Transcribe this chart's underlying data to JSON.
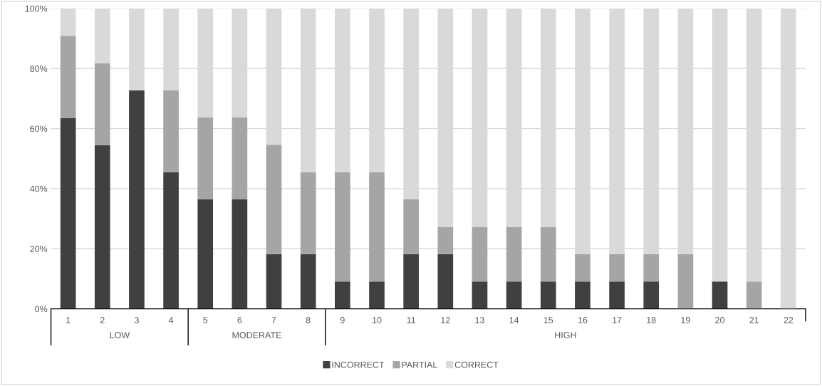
{
  "chart_data": {
    "type": "bar",
    "stacked": true,
    "categories": [
      "1",
      "2",
      "3",
      "4",
      "5",
      "6",
      "7",
      "8",
      "9",
      "10",
      "11",
      "12",
      "13",
      "14",
      "15",
      "16",
      "17",
      "18",
      "19",
      "20",
      "21",
      "22"
    ],
    "series": [
      {
        "name": "INCORRECT",
        "color": "#404040",
        "values": [
          63.6,
          54.5,
          72.7,
          45.5,
          36.4,
          36.4,
          18.2,
          18.2,
          9.1,
          9.1,
          18.2,
          18.2,
          9.1,
          9.1,
          9.1,
          9.1,
          9.1,
          9.1,
          0,
          9.1,
          0,
          0
        ]
      },
      {
        "name": "PARTIAL",
        "color": "#a5a5a5",
        "values": [
          27.3,
          27.3,
          0,
          27.3,
          27.3,
          27.3,
          36.4,
          27.3,
          36.4,
          36.4,
          18.2,
          9.1,
          18.2,
          18.2,
          18.2,
          9.1,
          9.1,
          9.1,
          18.2,
          0,
          9.1,
          0
        ]
      },
      {
        "name": "CORRECT",
        "color": "#d9d9d9",
        "values": [
          9.1,
          18.2,
          27.3,
          27.3,
          36.3,
          36.3,
          45.4,
          54.5,
          54.5,
          54.5,
          63.6,
          72.7,
          72.7,
          72.7,
          72.7,
          81.8,
          81.8,
          81.8,
          81.8,
          90.9,
          90.9,
          100
        ]
      }
    ],
    "ylim": [
      0,
      100
    ],
    "yticks": [
      {
        "value": 0,
        "label": "0%"
      },
      {
        "value": 20,
        "label": "20%"
      },
      {
        "value": 40,
        "label": "40%"
      },
      {
        "value": 60,
        "label": "60%"
      },
      {
        "value": 80,
        "label": "80%"
      },
      {
        "value": 100,
        "label": "100%"
      }
    ],
    "grid": "y",
    "legend": "bottom",
    "annotations": [
      "LOW",
      "MODERATE",
      "HIGH"
    ]
  }
}
